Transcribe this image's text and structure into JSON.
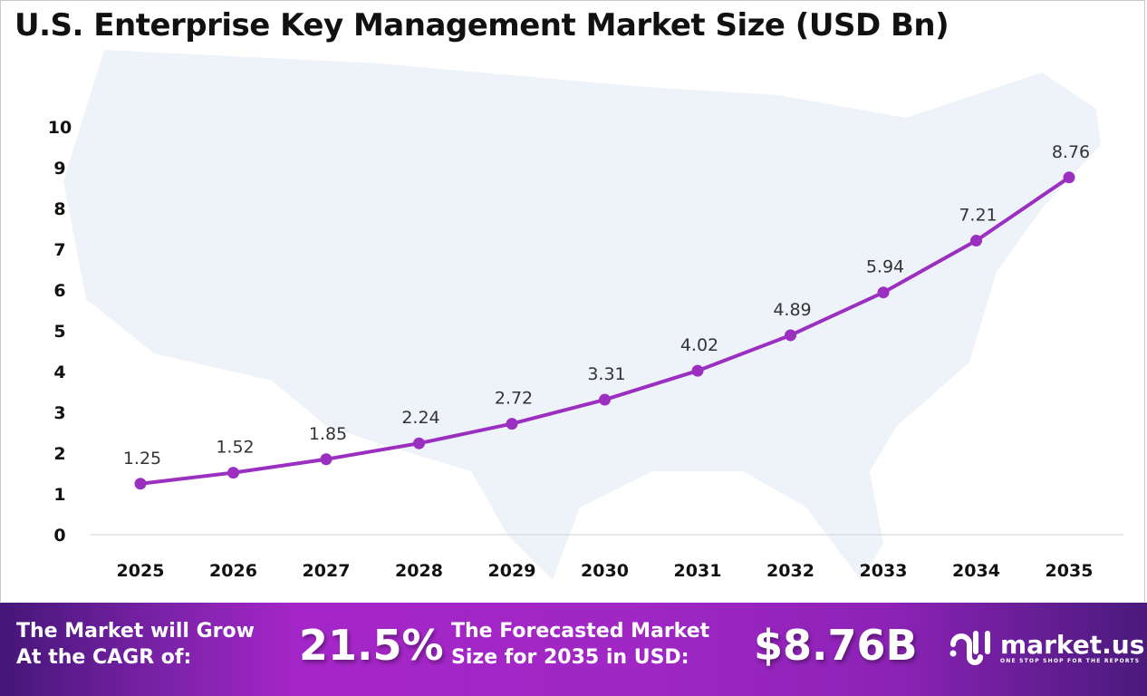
{
  "chart_data": {
    "type": "line",
    "title": "U.S. Enterprise Key Management Market Size (USD Bn)",
    "categories": [
      "2025",
      "2026",
      "2027",
      "2028",
      "2029",
      "2030",
      "2031",
      "2032",
      "2033",
      "2034",
      "2035"
    ],
    "values": [
      1.25,
      1.52,
      1.85,
      2.24,
      2.72,
      3.31,
      4.02,
      4.89,
      5.94,
      7.21,
      8.76
    ],
    "data_labels": [
      "1.25",
      "1.52",
      "1.85",
      "2.24",
      "2.72",
      "3.31",
      "4.02",
      "4.89",
      "5.94",
      "7.21",
      "8.76"
    ],
    "yticks": [
      "0",
      "1",
      "2",
      "3",
      "4",
      "5",
      "6",
      "7",
      "8",
      "9",
      "10"
    ],
    "ylim": [
      0,
      10
    ],
    "grid": false,
    "line_color": "#9b30c0",
    "background": "faint map of the United States"
  },
  "footer": {
    "cagr_label_1": "The Market will Grow",
    "cagr_label_2": "At the CAGR of:",
    "cagr_value": "21.5%",
    "forecast_label_1": "The Forecasted Market",
    "forecast_label_2": "Size for 2035 in USD:",
    "forecast_value": "$8.76B",
    "logo_name": "market.us",
    "logo_tagline": "ONE STOP SHOP FOR THE REPORTS"
  }
}
